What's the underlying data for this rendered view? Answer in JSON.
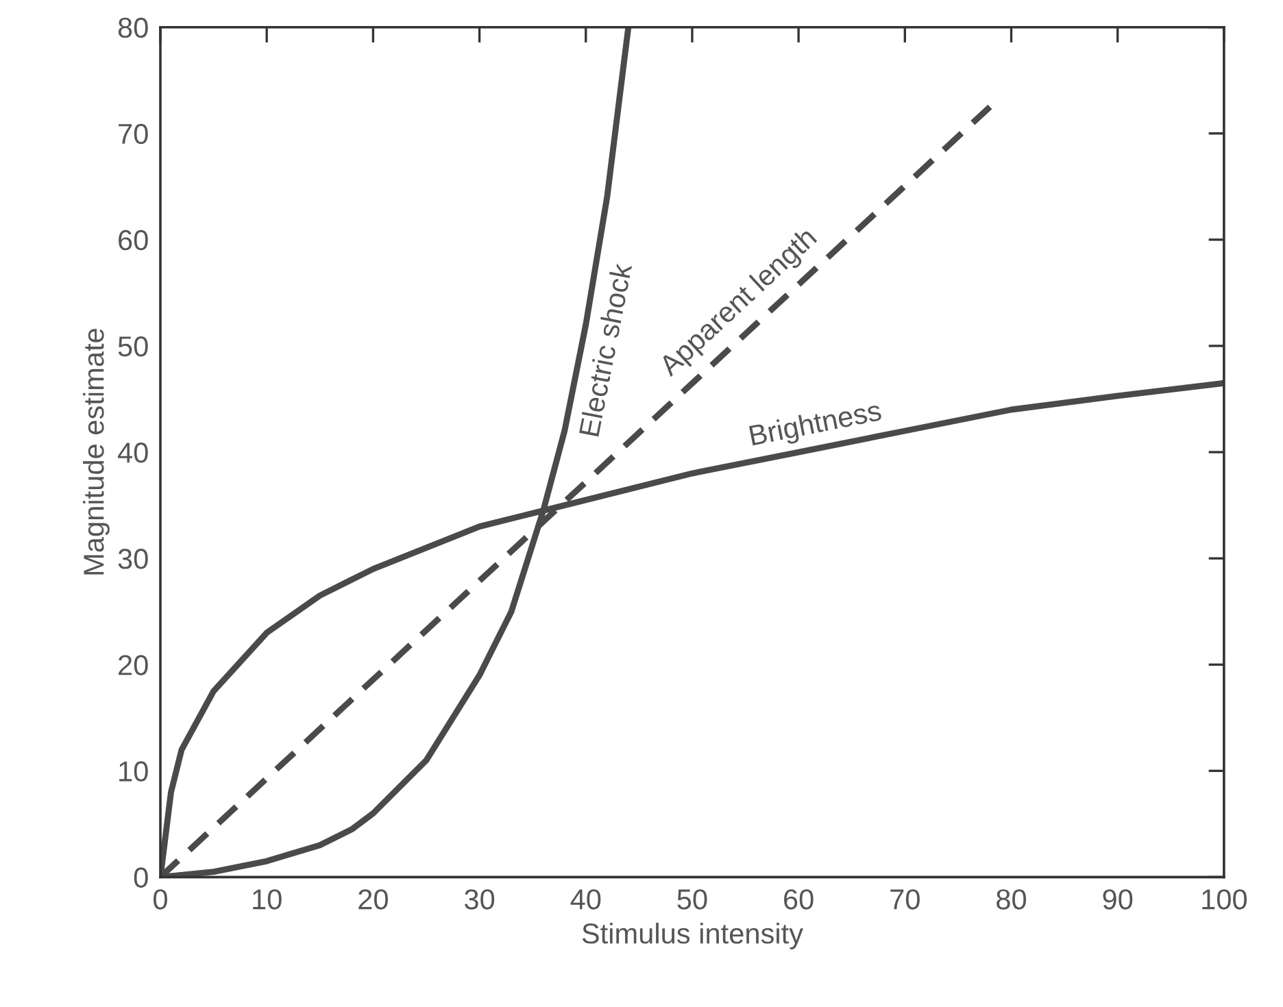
{
  "chart_data": {
    "type": "line",
    "xlabel": "Stimulus intensity",
    "ylabel": "Magnitude estimate",
    "xlim": [
      0,
      100
    ],
    "ylim": [
      0,
      80
    ],
    "xticks": [
      0,
      10,
      20,
      30,
      40,
      50,
      60,
      70,
      80,
      90,
      100
    ],
    "yticks": [
      0,
      10,
      20,
      30,
      40,
      50,
      60,
      70,
      80
    ],
    "grid": false,
    "legend": false,
    "series": [
      {
        "name": "Electric shock",
        "color": "#4a4a4a",
        "line_style": "solid",
        "x": [
          0,
          5,
          10,
          15,
          18,
          20,
          25,
          30,
          33,
          36,
          38,
          40,
          42,
          44
        ],
        "values": [
          0,
          0.5,
          1.5,
          3,
          4.5,
          6,
          11,
          19,
          25,
          34.5,
          42,
          52,
          64,
          80
        ]
      },
      {
        "name": "Apparent length",
        "color": "#4a4a4a",
        "line_style": "dashed",
        "x": [
          0,
          78
        ],
        "values": [
          0,
          72.5
        ]
      },
      {
        "name": "Brightness",
        "color": "#4a4a4a",
        "line_style": "solid",
        "x": [
          0,
          1,
          2,
          5,
          10,
          15,
          20,
          30,
          36,
          50,
          60,
          70,
          80,
          90,
          100
        ],
        "values": [
          0,
          8,
          12,
          17.5,
          23,
          26.5,
          29,
          33,
          34.5,
          38,
          40,
          42,
          44,
          45.3,
          46.5
        ]
      }
    ]
  }
}
